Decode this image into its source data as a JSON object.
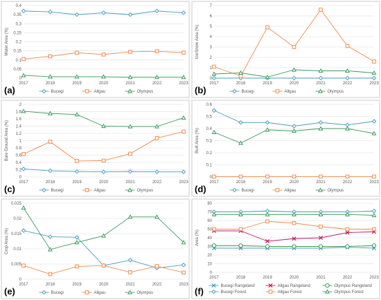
{
  "panel_colors": {
    "blue": "#4a9bbd",
    "orange": "#f08a4b",
    "green": "#3a9a5c",
    "magenta": "#c2185b",
    "grid": "#d9d9d9",
    "border": "#bfbfbf"
  },
  "chart_data": [
    {
      "type": "line",
      "panel_label": "(a)",
      "ylabel": "Water Area (%)",
      "x": [
        "2017",
        "2018",
        "2019",
        "2020",
        "2021",
        "2022",
        "2023"
      ],
      "ylim": [
        0,
        0.4
      ],
      "yticks": [
        "0",
        "0.05",
        "0.1",
        "0.15",
        "0.2",
        "0.25",
        "0.3",
        "0.35",
        "0.4"
      ],
      "series": [
        {
          "name": "Bucegi",
          "color": "#4a9bbd",
          "marker": "diamond",
          "values": [
            0.37,
            0.365,
            0.35,
            0.36,
            0.35,
            0.37,
            0.36
          ]
        },
        {
          "name": "Allgau",
          "color": "#f08a4b",
          "marker": "square",
          "values": [
            0.105,
            0.12,
            0.14,
            0.13,
            0.145,
            0.148,
            0.14
          ]
        },
        {
          "name": "Olympus",
          "color": "#3a9a5c",
          "marker": "triangle",
          "values": [
            0.015,
            0.008,
            0.008,
            0.008,
            0.005,
            0.005,
            0.005
          ]
        }
      ]
    },
    {
      "type": "line",
      "panel_label": "(b)",
      "ylabel": "Ice/Snow Area (%)",
      "x": [
        "2017",
        "2018",
        "2019",
        "2020",
        "2021",
        "2022",
        "2023"
      ],
      "ylim": [
        0,
        7
      ],
      "yticks": [
        "0",
        "1",
        "2",
        "3",
        "4",
        "5",
        "6",
        "7"
      ],
      "series": [
        {
          "name": "Bucegi",
          "color": "#4a9bbd",
          "marker": "diamond",
          "values": [
            0,
            0,
            0,
            0,
            0,
            0,
            0
          ]
        },
        {
          "name": "Allgau",
          "color": "#f08a4b",
          "marker": "square",
          "values": [
            1.1,
            0.2,
            4.9,
            3.0,
            6.6,
            3.1,
            1.6
          ]
        },
        {
          "name": "Olympus",
          "color": "#3a9a5c",
          "marker": "triangle",
          "values": [
            0.4,
            0.5,
            0.1,
            0.8,
            0.7,
            0.7,
            0.5
          ]
        }
      ]
    },
    {
      "type": "line",
      "panel_label": "(c)",
      "ylabel": "Bare Ground Area (%)",
      "x": [
        "2017",
        "2018",
        "2019",
        "2020",
        "2021",
        "2022",
        "2023"
      ],
      "ylim": [
        0,
        2
      ],
      "yticks": [
        "0",
        "0.2",
        "0.4",
        "0.6",
        "0.8",
        "1",
        "1.2",
        "1.4",
        "1.6",
        "1.8",
        "2"
      ],
      "series": [
        {
          "name": "Bucegi",
          "color": "#4a9bbd",
          "marker": "diamond",
          "values": [
            0.22,
            0.17,
            0.15,
            0.14,
            0.15,
            0.14,
            0.14
          ]
        },
        {
          "name": "Allgau",
          "color": "#f08a4b",
          "marker": "square",
          "values": [
            0.63,
            0.97,
            0.44,
            0.45,
            0.64,
            1.07,
            1.25
          ]
        },
        {
          "name": "Olympus",
          "color": "#3a9a5c",
          "marker": "triangle",
          "values": [
            1.81,
            1.75,
            1.72,
            1.4,
            1.39,
            1.39,
            1.63
          ]
        }
      ]
    },
    {
      "type": "line",
      "panel_label": "(d)",
      "ylabel": "Built Area (%)",
      "x": [
        "2017",
        "2018",
        "2019",
        "2020",
        "2021",
        "2022",
        "2023"
      ],
      "ylim": [
        0,
        0.6
      ],
      "yticks": [
        "0",
        "0.1",
        "0.2",
        "0.3",
        "0.4",
        "0.5",
        "0.6"
      ],
      "series": [
        {
          "name": "Bucegi",
          "color": "#4a9bbd",
          "marker": "diamond",
          "values": [
            0.55,
            0.45,
            0.45,
            0.42,
            0.45,
            0.43,
            0.46
          ]
        },
        {
          "name": "Allgau",
          "color": "#f08a4b",
          "marker": "square",
          "values": [
            0.003,
            0.003,
            0.003,
            0.003,
            0.003,
            0.003,
            0.003
          ]
        },
        {
          "name": "Olympus",
          "color": "#3a9a5c",
          "marker": "triangle",
          "values": [
            0.37,
            0.28,
            0.39,
            0.38,
            0.4,
            0.4,
            0.36
          ]
        }
      ]
    },
    {
      "type": "line",
      "panel_label": "(e)",
      "ylabel": "Crop Area (%)",
      "x": [
        "2017",
        "2018",
        "2019",
        "2020",
        "2021",
        "2022",
        "2023"
      ],
      "ylim": [
        0,
        0.025
      ],
      "yticks": [
        "0",
        "0.005",
        "0.01",
        "0.015",
        "0.02",
        "0.025"
      ],
      "series": [
        {
          "name": "Bucegi",
          "color": "#4a9bbd",
          "marker": "diamond",
          "values": [
            0.016,
            0.014,
            0.0138,
            0.0045,
            0.0063,
            0.0037,
            0.0047
          ]
        },
        {
          "name": "Allgau",
          "color": "#f08a4b",
          "marker": "square",
          "values": [
            0.0045,
            0.0017,
            0.0042,
            0.0045,
            0.0023,
            0.0043,
            0.0022
          ]
        },
        {
          "name": "Olympus",
          "color": "#3a9a5c",
          "marker": "triangle",
          "values": [
            0.0235,
            0.0098,
            0.0121,
            0.0143,
            0.0205,
            0.0205,
            0.0121
          ]
        }
      ]
    },
    {
      "type": "line",
      "panel_label": "(f)",
      "ylabel": "Area (%)",
      "x": [
        "2017",
        "2018",
        "2019",
        "2020",
        "2021",
        "2022",
        "2023"
      ],
      "ylim": [
        0,
        80
      ],
      "yticks": [
        "0",
        "10",
        "20",
        "30",
        "40",
        "50",
        "60",
        "70",
        "80"
      ],
      "series": [
        {
          "name": "Bucegi Rangeland",
          "color": "#4a9bbd",
          "marker": "x",
          "values": [
            28,
            28,
            28,
            28,
            28,
            29,
            28
          ]
        },
        {
          "name": "Allgau Rangeland",
          "color": "#c2185b",
          "marker": "x",
          "values": [
            48,
            48,
            36,
            39,
            40,
            46,
            47
          ]
        },
        {
          "name": "Olympus Rangeland",
          "color": "#3a9a5c",
          "marker": "circle",
          "values": [
            31,
            31,
            30,
            30,
            30,
            30,
            31
          ]
        },
        {
          "name": "Bucegi Forest",
          "color": "#4a9bbd",
          "marker": "diamond",
          "values": [
            70,
            70,
            71,
            70,
            70,
            70,
            71
          ]
        },
        {
          "name": "Allgau Forest",
          "color": "#f08a4b",
          "marker": "square",
          "values": [
            50,
            50,
            59,
            57,
            53,
            50,
            50
          ]
        },
        {
          "name": "Olympus Forest",
          "color": "#3a9a5c",
          "marker": "triangle",
          "values": [
            67,
            67,
            67,
            67,
            67,
            67,
            66
          ]
        }
      ]
    }
  ]
}
